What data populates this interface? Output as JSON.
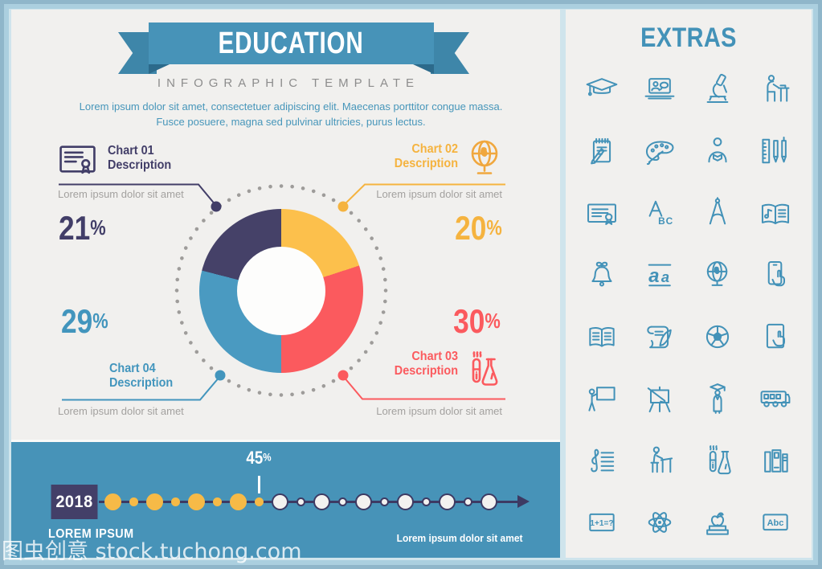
{
  "banner": {
    "title": "EDUCATION",
    "subtitle": "INFOGRAPHIC TEMPLATE"
  },
  "intro": "Lorem ipsum dolor sit amet, consectetuer adipiscing elit. Maecenas porttitor congue massa. Fusce posuere, magna sed pulvinar ultricies, purus lectus.",
  "callouts": {
    "c1": {
      "line1": "Chart 01",
      "line2": "Description",
      "note": "Lorem ipsum dolor sit amet",
      "pct": "21%",
      "color": "#423e68",
      "icon": "certificate-icon"
    },
    "c2": {
      "line1": "Chart 02",
      "line2": "Description",
      "note": "Lorem ipsum dolor sit amet",
      "pct": "20%",
      "color": "#f5b33f",
      "icon": "globe-icon"
    },
    "c3": {
      "line1": "Chart 03",
      "line2": "Description",
      "note": "Lorem ipsum dolor sit amet",
      "pct": "30%",
      "color": "#fb5a5e",
      "icon": "chemistry-icon"
    },
    "c4": {
      "line1": "Chart 04",
      "line2": "Description",
      "note": "Lorem ipsum dolor sit amet",
      "pct": "29%",
      "color": "#4295bd",
      "icon": null
    }
  },
  "chart_data": [
    {
      "type": "pie",
      "donut": true,
      "title": "EDUCATION infographic donut chart",
      "start_angle_deg": 0,
      "clockwise": true,
      "hole_ratio": 0.54,
      "outline": "dotted gray ring around donut",
      "segments": [
        {
          "label": "Chart 02 Description",
          "value_pct": 20,
          "color": "#fcc04c"
        },
        {
          "label": "Chart 03 Description",
          "value_pct": 30,
          "color": "#fb5a5e"
        },
        {
          "label": "Chart 04 Description",
          "value_pct": 29,
          "color": "#4a9ac1"
        },
        {
          "label": "Chart 01 Description",
          "value_pct": 21,
          "color": "#454168"
        }
      ]
    },
    {
      "type": "line",
      "subtype": "timeline",
      "year_label": "2018",
      "annotation": {
        "text": "45%",
        "dot_index": 7
      },
      "dot_count": 19,
      "dot_pattern": [
        "Ly",
        "sy",
        "Ly",
        "sy",
        "Ly",
        "sy",
        "Ly",
        "sy",
        "Lw",
        "sw",
        "Lw",
        "sw",
        "Lw",
        "sw",
        "Lw",
        "sw",
        "Lw",
        "sw",
        "Lw"
      ],
      "colors": {
        "yellow": "#f6ba47",
        "white": "#f3f2f0",
        "line": "#3d3a63"
      }
    }
  ],
  "timeline": {
    "year": "2018",
    "marker": "45%",
    "caption_left": "LOREM IPSUM",
    "caption_right": "Lorem ipsum dolor sit amet"
  },
  "extras": {
    "title": "EXTRAS",
    "icons": [
      "graduation-cap-icon",
      "online-course-icon",
      "microscope-icon",
      "student-at-desk-icon",
      "notepad-pencil-icon",
      "paint-palette-icon",
      "person-reading-icon",
      "ruler-pens-icon",
      "certificate-icon",
      "abc-letters-icon",
      "drafting-compass-icon",
      "music-book-icon",
      "school-bell-icon",
      "handwriting-aa-icon",
      "globe-icon",
      "phone-touch-icon",
      "open-book-icon",
      "scroll-quill-icon",
      "soccer-ball-icon",
      "tablet-touch-icon",
      "teacher-board-icon",
      "easel-brush-icon",
      "graduate-icon",
      "school-bus-icon",
      "treble-clef-icon",
      "student-desk-icon",
      "chemistry-flasks-icon",
      "book-shelf-icon",
      "math-board-icon",
      "atom-icon",
      "apple-books-icon",
      "abc-board-icon"
    ]
  },
  "watermark": {
    "text": "图虫创意 stock.tuchong.com"
  },
  "colors": {
    "frame_outer": "#8fb6ca",
    "frame_mid": "#abcfdf",
    "frame_inner": "#cfe4ec",
    "panel_bg": "#f1f0ee",
    "ribbon_blue": "#4793b8",
    "ribbon_dark": "#2c6a8b",
    "banner_blue": "#4793b8",
    "navy": "#423e68",
    "yellow": "#f5b33f",
    "red": "#fb5a5e",
    "blue": "#4295bd",
    "gray_text": "#a3a19f",
    "icon_blue": "#4392b8"
  }
}
